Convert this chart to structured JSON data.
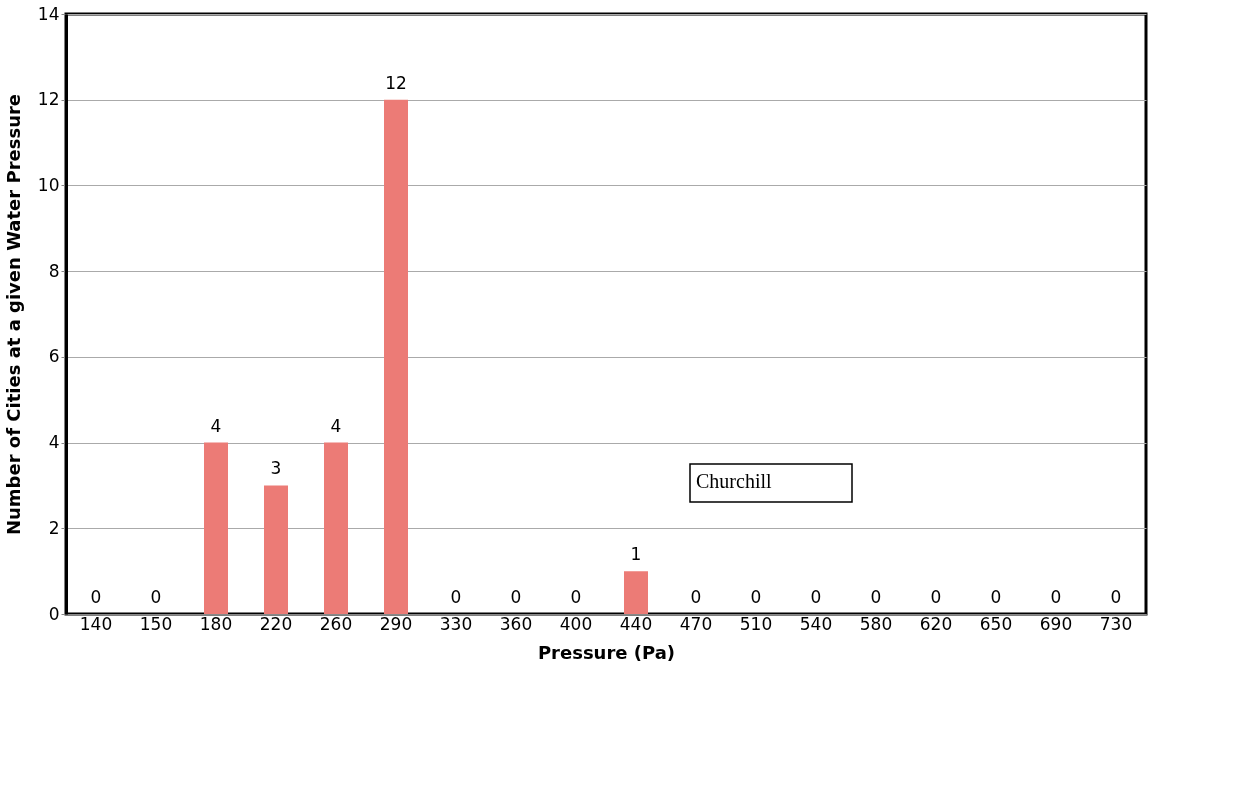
{
  "chart_data": {
    "type": "bar",
    "xlabel": "Pressure (Pa)",
    "ylabel": "Number of Cities at a given Water Pressure",
    "categories": [
      "140",
      "150",
      "180",
      "220",
      "260",
      "290",
      "330",
      "360",
      "400",
      "440",
      "470",
      "510",
      "540",
      "580",
      "620",
      "650",
      "690",
      "730"
    ],
    "values": [
      0,
      0,
      4,
      3,
      4,
      12,
      0,
      0,
      0,
      1,
      0,
      0,
      0,
      0,
      0,
      0,
      0,
      0
    ],
    "color": "#ec7b76",
    "ylim": [
      0,
      14
    ],
    "yticks": [
      0,
      2,
      4,
      6,
      8,
      10,
      12,
      14
    ],
    "grid": "y",
    "data_labels": true,
    "annotations": [
      "Churchill"
    ]
  }
}
